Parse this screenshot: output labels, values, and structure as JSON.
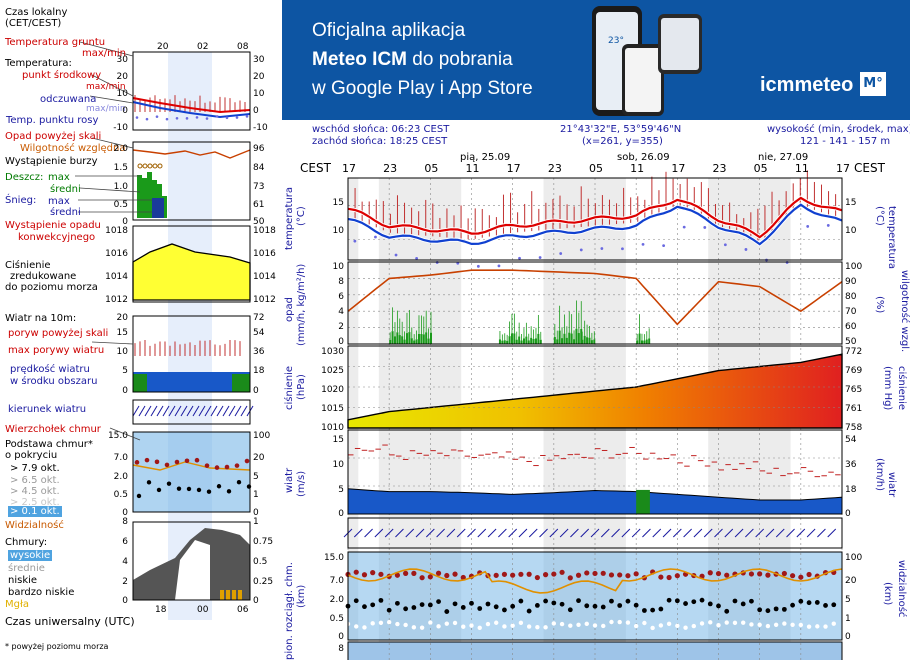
{
  "left_panel": {
    "time_header": [
      "Czas lokalny",
      "(CET/CEST)"
    ],
    "temperature_labels": {
      "ground": "Temperatura gruntu",
      "ground_sub": "max/min",
      "temp": "Temperatura:",
      "dew": "punkt środkowy",
      "dew_sub": "max/min",
      "perceived": "odczuwana",
      "perceived_sub": "max/min",
      "dewpoint": "Temp. punktu rosy"
    },
    "precip_labels": {
      "precip_over": "Opad powyżej skali",
      "humidity": "Wilgotność względna",
      "storm": "Wystąpienie burzy",
      "rain": "Deszcz:",
      "rain_max": "max",
      "rain_mid": "średni",
      "snow": "Śnieg:",
      "snow_max": "max",
      "snow_mid": "średni",
      "occurrence": "Wystąpienie opadu",
      "convective": "konwekcyjnego"
    },
    "pressure_labels": [
      "Ciśnienie",
      "zredukowane",
      "do poziomu morza"
    ],
    "wind_labels": {
      "wind": "Wiatr na 10m:",
      "gust_over": "poryw powyżej skali",
      "gust_max": "max porywy wiatru",
      "speed": "prędkość wiatru",
      "speed_sub": "w środku obszaru",
      "direction": "kierunek wiatru"
    },
    "cloud_labels": {
      "top": "Wierzchołek chmur",
      "base": "Podstawa chmur*",
      "base_sub": "o pokryciu",
      "o79": "> 7.9 okt.",
      "o65": "> 6.5 okt.",
      "o45": "> 4.5 okt.",
      "o25": "> 2.5 okt.",
      "o01": "> 0.1 okt.",
      "visibility": "Widzialność",
      "clouds": "Chmury:",
      "high": "wysokie",
      "mid": "średnie",
      "low": "niskie",
      "vlow": "bardzo niskie",
      "fog": "Mgła"
    },
    "utc_label": "Czas uniwersalny (UTC)",
    "footnote": "* powyżej poziomu morza",
    "local_ticks": [
      "20",
      "02",
      "08"
    ],
    "utc_ticks": [
      "18",
      "00",
      "06"
    ],
    "temp_axis": [
      "30",
      "20",
      "10",
      "0",
      "-10"
    ],
    "temp_axis_right": [
      "30",
      "20",
      "10",
      "0",
      "-10"
    ],
    "precip_axis": [
      "2.0",
      "1.5",
      "1.0",
      "0.5",
      "0"
    ],
    "humidity_axis": [
      "96",
      "84",
      "73",
      "61",
      "50"
    ],
    "pressure_axis": [
      "1018",
      "1016",
      "1014",
      "1012"
    ],
    "pressure_axis_right": [
      "1018",
      "1016",
      "1014",
      "1012"
    ],
    "wind_axis": [
      "20",
      "15",
      "10",
      "5",
      "0"
    ],
    "wind_axis_right": [
      "72",
      "54",
      "36",
      "18",
      "0"
    ],
    "cloud_axis": [
      "15.0",
      "7.0",
      "2.0",
      "0.5",
      "0"
    ],
    "vis_axis": [
      "100",
      "20",
      "5",
      "1",
      "0"
    ],
    "cover_axis": [
      "8",
      "6",
      "4",
      "2",
      "0"
    ],
    "cover_axis_right": [
      "1",
      "0.75",
      "0.5",
      "0.25",
      "0"
    ]
  },
  "banner": {
    "line1": "Oficjalna aplikacja",
    "line2_bold": "Meteo ICM",
    "line2_rest": " do pobrania",
    "line3": "w Google Play i App Store",
    "logo_text": "icmmeteo",
    "logo_badge": "M°",
    "phone_temp": "23°"
  },
  "info": {
    "sunrise": "wschód słońca: 06:23 CEST",
    "sunset": "zachód słońca: 18:25 CEST",
    "coords": "21°43'32\"E, 53°59'46\"N",
    "grid": "(x=261,  y=355)",
    "height_label": "wysokość (min, środek, max)",
    "height_values": "121 - 141 - 157 m"
  },
  "main_chart": {
    "tz": "CEST",
    "days": [
      "pią, 25.09",
      "sob, 26.09",
      "nie, 27.09"
    ],
    "hour_ticks": [
      "17",
      "23",
      "05",
      "11",
      "17",
      "23",
      "05",
      "11",
      "17",
      "23",
      "05",
      "11",
      "17"
    ],
    "panel_labels": {
      "temp": "temperatura",
      "temp_unit": "(°C)",
      "precip": "opad",
      "precip_unit": "(mm/h, kg/m²/h)",
      "humidity": "wilgotność wzgl.",
      "humidity_unit": "(%)",
      "pressure": "ciśnienie",
      "pressure_unit": "(hPa)",
      "pressure_mmhg": "(mm Hg)",
      "wind": "wiatr",
      "wind_unit": "(m/s)",
      "wind_kmh": "(km/h)",
      "cloud_base": "pion. rozciągł. chm.",
      "cloud_unit": "(km)",
      "visibility": "widzialność",
      "vis_unit": "(km)"
    },
    "temp_axis": [
      "15",
      "10"
    ],
    "temp_axis_right": [
      "15",
      "10"
    ],
    "precip_axis": [
      "10",
      "8",
      "6",
      "4",
      "2",
      "0"
    ],
    "humidity_axis": [
      "100",
      "90",
      "80",
      "70",
      "60",
      "50"
    ],
    "pressure_axis": [
      "1030",
      "1025",
      "1020",
      "1015",
      "1010"
    ],
    "pressure_axis_right": [
      "772",
      "769",
      "765",
      "761",
      "758"
    ],
    "wind_axis": [
      "15",
      "10",
      "5",
      "0"
    ],
    "wind_axis_right": [
      "54",
      "36",
      "18",
      "0"
    ],
    "cloud_axis": [
      "15.0",
      "7.0",
      "2.0",
      "0.5",
      "0"
    ],
    "vis_axis": [
      "100",
      "20",
      "5",
      "1",
      "0"
    ],
    "bottom_axis": [
      "8"
    ]
  },
  "chart_data": [
    {
      "type": "line",
      "name_ref": "temperature",
      "x_hours_from_start": [
        0,
        6,
        12,
        18,
        24,
        30,
        36,
        42,
        48,
        54,
        60,
        66,
        72
      ],
      "series": [
        {
          "name": "punkt środkowy",
          "values": [
            14.5,
            12.0,
            11.5,
            11.0,
            12.0,
            12.5,
            13.0,
            13.5,
            16.0,
            13.0,
            10.5,
            16.0,
            14.0
          ]
        },
        {
          "name": "odczuwana",
          "values": [
            13.0,
            10.5,
            10.0,
            9.5,
            10.5,
            11.0,
            11.5,
            12.0,
            15.0,
            12.0,
            9.5,
            15.0,
            12.5
          ]
        }
      ],
      "ylim": [
        7,
        19
      ]
    },
    {
      "type": "bar",
      "name_ref": "precipitation",
      "series": [
        {
          "name": "Wilgotność względna",
          "values": [
            70,
            90,
            92,
            95,
            95,
            94,
            93,
            90,
            62,
            88,
            85,
            70,
            88
          ]
        }
      ],
      "ylim": [
        0,
        10
      ]
    },
    {
      "type": "area",
      "name_ref": "pressure",
      "x_hours_from_start": [
        0,
        6,
        12,
        18,
        24,
        30,
        36,
        42,
        48,
        54,
        60,
        66,
        72
      ],
      "values": [
        1012,
        1014,
        1015,
        1016,
        1017,
        1018,
        1019,
        1020,
        1022,
        1024,
        1025,
        1026,
        1028
      ],
      "ylim": [
        1010,
        1030
      ]
    },
    {
      "type": "area",
      "name_ref": "wind",
      "x_hours_from_start": [
        0,
        6,
        12,
        18,
        24,
        30,
        36,
        42,
        48,
        54,
        60,
        66,
        72
      ],
      "values": [
        4.5,
        4.0,
        4.0,
        3.8,
        3.5,
        3.8,
        4.2,
        4.0,
        3.5,
        3.0,
        2.5,
        2.5,
        3.0
      ],
      "ylim": [
        0,
        15
      ]
    }
  ],
  "colors": {
    "banner": "#0d55a3",
    "temp": "#dd0000",
    "perceived": "#1040d0",
    "humidity": "#c84000",
    "rain": "#1a9a1a",
    "pressure_low": "#e0e000",
    "pressure_high": "#e02020",
    "wind": "#1858c8",
    "sky": "#7ab8e8"
  }
}
